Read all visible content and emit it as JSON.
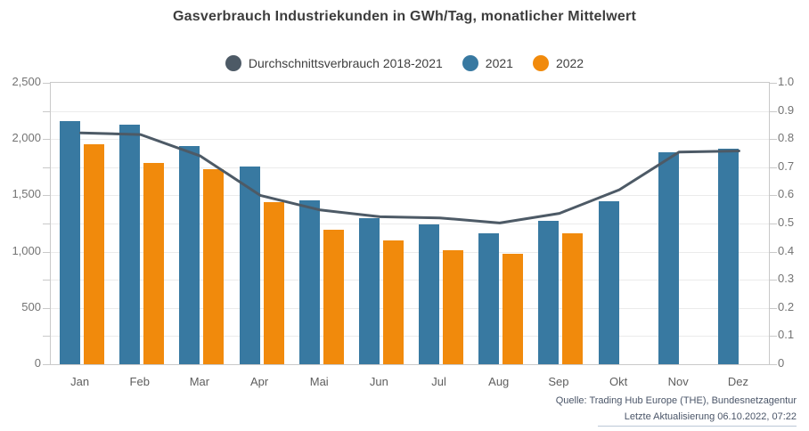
{
  "title": "Gasverbrauch Industriekunden in GWh/Tag, monatlicher Mittelwert",
  "legend": [
    {
      "label": "Durchschnittsverbrauch 2018-2021",
      "color": "#4d5a66"
    },
    {
      "label": "2021",
      "color": "#3879a1"
    },
    {
      "label": "2022",
      "color": "#f18a0c"
    }
  ],
  "chart_data": {
    "type": "bar",
    "title": "Gasverbrauch Industriekunden in GWh/Tag, monatlicher Mittelwert",
    "categories": [
      "Jan",
      "Feb",
      "Mar",
      "Apr",
      "Mai",
      "Jun",
      "Jul",
      "Aug",
      "Sep",
      "Okt",
      "Nov",
      "Dez"
    ],
    "series": [
      {
        "name": "Durchschnittsverbrauch 2018-2021",
        "type": "line",
        "color": "#4d5a66",
        "values": [
          2055,
          2040,
          1850,
          1500,
          1370,
          1310,
          1300,
          1255,
          1340,
          1550,
          1885,
          1895
        ]
      },
      {
        "name": "2021",
        "type": "bar",
        "color": "#3879a1",
        "values": [
          2160,
          2125,
          1935,
          1755,
          1455,
          1300,
          1245,
          1165,
          1275,
          1450,
          1880,
          1915
        ]
      },
      {
        "name": "2022",
        "type": "bar",
        "color": "#f18a0c",
        "values": [
          1955,
          1790,
          1735,
          1440,
          1195,
          1100,
          1010,
          980,
          1160,
          null,
          null,
          null
        ]
      }
    ],
    "left_axis": {
      "max": 2500,
      "min": 0,
      "minor_step": 250,
      "ticks": [
        {
          "v": 2500,
          "label": "2,500"
        },
        {
          "v": 2000,
          "label": "2,000"
        },
        {
          "v": 1500,
          "label": "1,500"
        },
        {
          "v": 1000,
          "label": "1,000"
        },
        {
          "v": 500,
          "label": "500"
        },
        {
          "v": 0,
          "label": "0"
        }
      ]
    },
    "right_axis": {
      "max": 1.0,
      "min": 0,
      "ticks": [
        {
          "v": 1.0,
          "label": "1.0"
        },
        {
          "v": 0.9,
          "label": "0.9"
        },
        {
          "v": 0.8,
          "label": "0.8"
        },
        {
          "v": 0.7,
          "label": "0.7"
        },
        {
          "v": 0.6,
          "label": "0.6"
        },
        {
          "v": 0.5,
          "label": "0.5"
        },
        {
          "v": 0.4,
          "label": "0.4"
        },
        {
          "v": 0.3,
          "label": "0.3"
        },
        {
          "v": 0.2,
          "label": "0.2"
        },
        {
          "v": 0.1,
          "label": "0.1"
        },
        {
          "v": 0,
          "label": "0"
        }
      ]
    },
    "grid": true,
    "legend_position": "top"
  },
  "source": {
    "line1": "Quelle: Trading Hub Europe (THE), Bundesnetzagentur",
    "line2": "Letzte Aktualisierung 06.10.2022, 07:22"
  }
}
